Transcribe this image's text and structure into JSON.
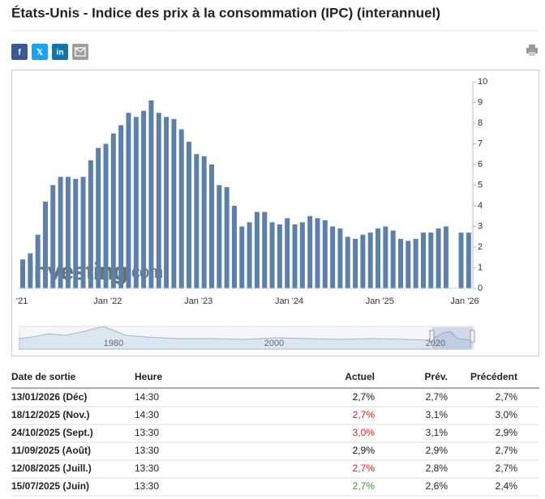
{
  "header": {
    "title": "États-Unis - Indice des prix à la consommation (IPC) (interannuel)",
    "share_buttons": [
      "f",
      "𝕏",
      "in"
    ]
  },
  "chart_data": {
    "type": "bar",
    "color": "#5b80aa",
    "categories": [
      "'21",
      null,
      null,
      null,
      null,
      null,
      null,
      null,
      null,
      null,
      null,
      null,
      "Jan '22",
      null,
      null,
      null,
      null,
      null,
      null,
      null,
      null,
      null,
      null,
      null,
      "Jan '23",
      null,
      null,
      null,
      null,
      null,
      null,
      null,
      null,
      null,
      null,
      null,
      "Jan '24",
      null,
      null,
      null,
      null,
      null,
      null,
      null,
      null,
      null,
      null,
      null,
      "Jan '25",
      null,
      null,
      null,
      null,
      null,
      null,
      null,
      null,
      null,
      null,
      null
    ],
    "end_label": "Jan '26",
    "values": [
      1.4,
      1.7,
      2.6,
      4.2,
      5.0,
      5.4,
      5.4,
      5.3,
      5.4,
      6.2,
      6.8,
      7.0,
      7.5,
      7.9,
      8.5,
      8.3,
      8.6,
      9.1,
      8.5,
      8.3,
      8.2,
      7.7,
      7.1,
      6.5,
      6.4,
      6.0,
      5.0,
      4.9,
      4.0,
      3.0,
      3.2,
      3.7,
      3.7,
      3.2,
      3.1,
      3.4,
      3.1,
      3.2,
      3.5,
      3.4,
      3.3,
      3.0,
      2.9,
      2.5,
      2.4,
      2.6,
      2.7,
      2.9,
      3.0,
      2.8,
      2.4,
      2.3,
      2.4,
      2.7,
      2.7,
      2.9,
      3.0,
      null,
      2.7,
      2.7
    ],
    "ylim": [
      0,
      10
    ],
    "yticks": [
      0,
      1,
      2,
      3,
      4,
      5,
      6,
      7,
      8,
      9,
      10
    ],
    "watermark": [
      "Investing",
      ".com"
    ],
    "navigator_labels": [
      "1980",
      "2000",
      "2020"
    ]
  },
  "table": {
    "columns": [
      "Date de sortie",
      "Heure",
      "Actuel",
      "Prév.",
      "Précédent"
    ],
    "rows": [
      {
        "date": "13/01/2026 (Déc)",
        "time": "14:30",
        "actual": "2,7%",
        "actual_color": "#111111",
        "forecast": "2,7%",
        "previous": "2,7%"
      },
      {
        "date": "18/12/2025 (Nov.)",
        "time": "14:30",
        "actual": "2,7%",
        "actual_color": "#d91e18",
        "forecast": "3,1%",
        "previous": "3,0%"
      },
      {
        "date": "24/10/2025 (Sept.)",
        "time": "13:30",
        "actual": "3,0%",
        "actual_color": "#d91e18",
        "forecast": "3,1%",
        "previous": "2,9%"
      },
      {
        "date": "11/09/2025 (Août)",
        "time": "13:30",
        "actual": "2,9%",
        "actual_color": "#111111",
        "forecast": "2,9%",
        "previous": "2,7%"
      },
      {
        "date": "12/08/2025 (Juill.)",
        "time": "13:30",
        "actual": "2,7%",
        "actual_color": "#d91e18",
        "forecast": "2,8%",
        "previous": "2,7%"
      },
      {
        "date": "15/07/2025 (Juin)",
        "time": "13:30",
        "actual": "2,7%",
        "actual_color": "#3a9a2a",
        "forecast": "2,6%",
        "previous": "2,4%"
      }
    ]
  }
}
